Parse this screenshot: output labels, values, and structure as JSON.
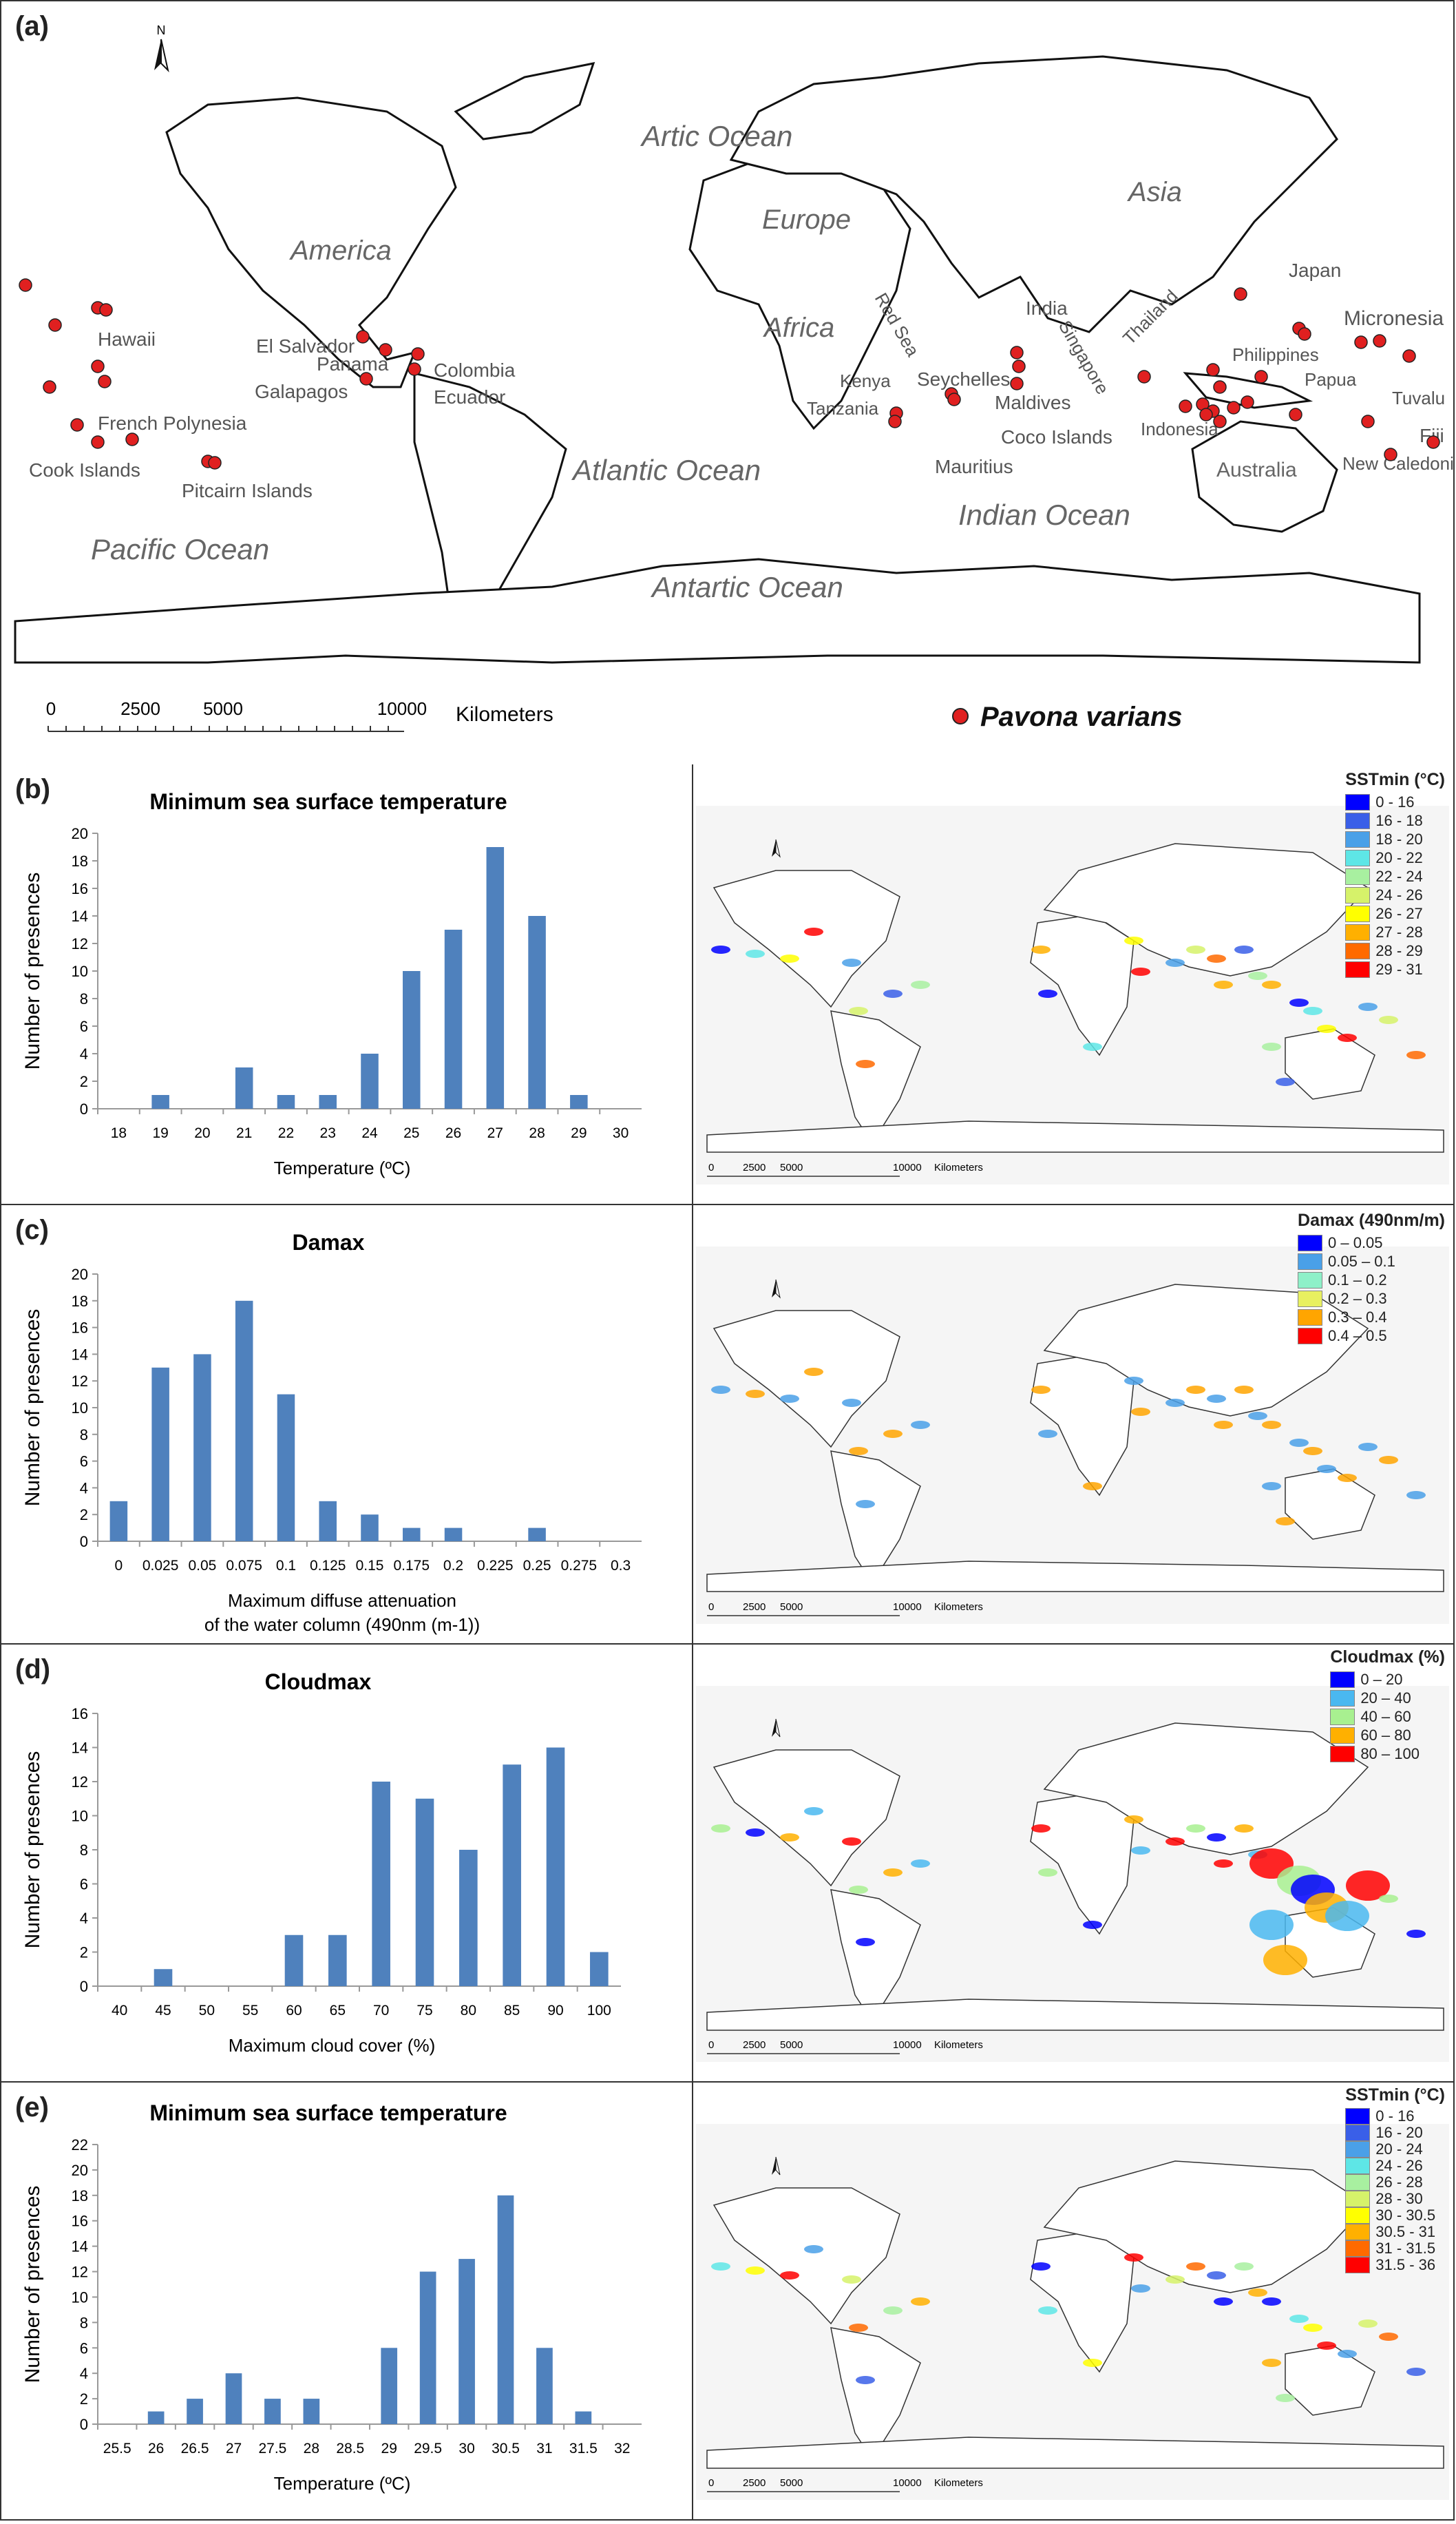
{
  "panel_a": {
    "label": "(a)",
    "north": "N",
    "oceans": [
      "Artic Ocean",
      "Atlantic Ocean",
      "Indian Ocean",
      "Pacific Ocean",
      "Antartic Ocean"
    ],
    "continents": [
      "America",
      "Europe",
      "Asia",
      "Africa",
      "Australia"
    ],
    "places": [
      "Hawaii",
      "El Salvador",
      "Panama",
      "Galapagos",
      "Colombia",
      "Ecuador",
      "French Polynesia",
      "Cook Islands",
      "Pitcairn Islands",
      "Kenya",
      "Red Sea",
      "Tanzania",
      "India",
      "Seychelles",
      "Maldives",
      "Singapore",
      "Thailand",
      "Coco Islands",
      "Mauritius",
      "Philippines",
      "Japan",
      "Micronesia",
      "Papua",
      "Indonesia",
      "Tuvalu",
      "Fiji",
      "New Caledonia"
    ],
    "scale_ticks": [
      "0",
      "2500",
      "5000",
      "10000"
    ],
    "scale_unit": "Kilometers",
    "legend_label": "Pavona varians",
    "marker_color": "#e02020"
  },
  "panels": [
    {
      "label": "(b)",
      "map_legend_title": "SSTmin (°C)",
      "map_legend": [
        {
          "label": "0 - 16",
          "color": "#0000ff"
        },
        {
          "label": "16 - 18",
          "color": "#3a5fe8"
        },
        {
          "label": "18 - 20",
          "color": "#4aa0e8"
        },
        {
          "label": "20 - 22",
          "color": "#5ee6e6"
        },
        {
          "label": "22 - 24",
          "color": "#a8f0a0"
        },
        {
          "label": "24 - 26",
          "color": "#d6f26a"
        },
        {
          "label": "26 - 27",
          "color": "#ffff00"
        },
        {
          "label": "27 - 28",
          "color": "#ffb000"
        },
        {
          "label": "28 - 29",
          "color": "#ff6a00"
        },
        {
          "label": "29 - 31",
          "color": "#ff0000"
        }
      ],
      "map_scale": [
        "0",
        "2500",
        "5000",
        "10000",
        "Kilometers"
      ]
    },
    {
      "label": "(c)",
      "map_legend_title": "Damax (490nm/m)",
      "map_legend": [
        {
          "label": "0 – 0.05",
          "color": "#0000ff"
        },
        {
          "label": "0.05 – 0.1",
          "color": "#4aa0e8"
        },
        {
          "label": "0.1 – 0.2",
          "color": "#8ef0c8"
        },
        {
          "label": "0.2 – 0.3",
          "color": "#e8f060"
        },
        {
          "label": "0.3 – 0.4",
          "color": "#ffa500"
        },
        {
          "label": "0.4 – 0.5",
          "color": "#ff0000"
        }
      ],
      "map_scale": [
        "0",
        "2500",
        "5000",
        "10000",
        "Kilometers"
      ]
    },
    {
      "label": "(d)",
      "map_legend_title": "Cloudmax (%)",
      "map_legend": [
        {
          "label": "0 – 20",
          "color": "#0000ff"
        },
        {
          "label": "20 – 40",
          "color": "#4ab8f0"
        },
        {
          "label": "40 – 60",
          "color": "#a8f090"
        },
        {
          "label": "60 – 80",
          "color": "#ffb000"
        },
        {
          "label": "80 – 100",
          "color": "#ff0000"
        }
      ],
      "map_scale": [
        "0",
        "2500",
        "5000",
        "10000",
        "Kilometers"
      ]
    },
    {
      "label": "(e)",
      "map_legend_title": "SSTmin (°C)",
      "map_legend": [
        {
          "label": "0 - 16",
          "color": "#0000ff"
        },
        {
          "label": "16 - 20",
          "color": "#3a5fe8"
        },
        {
          "label": "20 - 24",
          "color": "#4aa0e8"
        },
        {
          "label": "24 - 26",
          "color": "#5ee6e6"
        },
        {
          "label": "26 - 28",
          "color": "#a8f0a0"
        },
        {
          "label": "28 - 30",
          "color": "#d6f26a"
        },
        {
          "label": "30 - 30.5",
          "color": "#ffff00"
        },
        {
          "label": "30.5 - 31",
          "color": "#ffb000"
        },
        {
          "label": "31 - 31.5",
          "color": "#ff6a00"
        },
        {
          "label": "31.5 - 36",
          "color": "#ff0000"
        }
      ],
      "map_scale": [
        "0",
        "2500",
        "5000",
        "10000",
        "Kilometers"
      ]
    }
  ],
  "colors": {
    "bar": "#4f81bd",
    "axis": "#999999"
  },
  "chart_data": [
    {
      "type": "bar",
      "title": "Minimum sea surface temperature",
      "xlabel": "Temperature (ºC)",
      "ylabel": "Number of presences",
      "categories": [
        "18",
        "19",
        "20",
        "21",
        "22",
        "23",
        "24",
        "25",
        "26",
        "27",
        "28",
        "29",
        "30"
      ],
      "values": [
        0,
        1,
        0,
        3,
        1,
        1,
        4,
        10,
        13,
        19,
        14,
        1,
        0
      ],
      "ylim": [
        0,
        20
      ],
      "yticks": [
        "0",
        "2",
        "4",
        "6",
        "8",
        "10",
        "12",
        "14",
        "16",
        "18",
        "20"
      ],
      "grid": false
    },
    {
      "type": "bar",
      "title": "Damax",
      "xlabel": "Maximum diffuse attenuation",
      "xlabel2": "of the water column (490nm (m-1))",
      "ylabel": "Number of presences",
      "categories": [
        "0",
        "0.025",
        "0.05",
        "0.075",
        "0.1",
        "0.125",
        "0.15",
        "0.175",
        "0.2",
        "0.225",
        "0.25",
        "0.275",
        "0.3"
      ],
      "values": [
        3,
        13,
        14,
        18,
        11,
        3,
        2,
        1,
        1,
        0,
        1,
        0,
        0
      ],
      "ylim": [
        0,
        20
      ],
      "yticks": [
        "0",
        "2",
        "4",
        "6",
        "8",
        "10",
        "12",
        "14",
        "16",
        "18",
        "20"
      ],
      "grid": false
    },
    {
      "type": "bar",
      "title": "Cloudmax",
      "xlabel": "Maximum cloud cover (%)",
      "ylabel": "Number of presences",
      "categories": [
        "40",
        "45",
        "50",
        "55",
        "60",
        "65",
        "70",
        "75",
        "80",
        "85",
        "90",
        "100"
      ],
      "values": [
        0,
        1,
        0,
        0,
        3,
        3,
        12,
        11,
        8,
        13,
        14,
        2
      ],
      "ylim": [
        0,
        16
      ],
      "yticks": [
        "0",
        "2",
        "4",
        "6",
        "8",
        "10",
        "12",
        "14",
        "16"
      ],
      "grid": false
    },
    {
      "type": "bar",
      "title": "Minimum sea surface temperature",
      "xlabel": "Temperature (ºC)",
      "ylabel": "Number of presences",
      "categories": [
        "25.5",
        "26",
        "26.5",
        "27",
        "27.5",
        "28",
        "28.5",
        "29",
        "29.5",
        "30",
        "30.5",
        "31",
        "31.5",
        "32"
      ],
      "values": [
        0,
        1,
        2,
        4,
        2,
        2,
        0,
        6,
        12,
        13,
        18,
        6,
        1,
        0
      ],
      "ylim": [
        0,
        22
      ],
      "yticks": [
        "0",
        "2",
        "4",
        "6",
        "8",
        "10",
        "12",
        "14",
        "16",
        "18",
        "20",
        "22"
      ],
      "grid": false
    }
  ]
}
